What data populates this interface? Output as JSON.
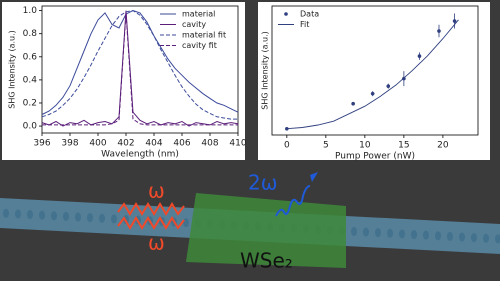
{
  "chart_data": [
    {
      "type": "line",
      "xlabel": "Wavelength (nm)",
      "ylabel": "SHG Intensity (a.u.)",
      "x": [
        396,
        396.5,
        397,
        397.5,
        398,
        398.5,
        399,
        399.5,
        400,
        400.5,
        401,
        401.5,
        402,
        402.5,
        403,
        403.5,
        404,
        404.5,
        405,
        405.5,
        406,
        406.5,
        407,
        407.5,
        408,
        408.5,
        409,
        409.5,
        410
      ],
      "series": [
        {
          "name": "material",
          "color": "#3b4a9a",
          "dash": false,
          "values": [
            0.1,
            0.13,
            0.18,
            0.25,
            0.35,
            0.5,
            0.65,
            0.8,
            0.92,
            0.98,
            0.88,
            0.85,
            0.97,
            1.0,
            0.98,
            0.9,
            0.78,
            0.68,
            0.58,
            0.5,
            0.44,
            0.38,
            0.33,
            0.28,
            0.24,
            0.2,
            0.18,
            0.15,
            0.12
          ]
        },
        {
          "name": "cavity",
          "color": "#5b1f7a",
          "dash": false,
          "values": [
            0.03,
            0.01,
            0.04,
            0.0,
            0.03,
            0.02,
            0.05,
            0.01,
            0.03,
            0.04,
            0.02,
            0.08,
            1.0,
            0.12,
            0.05,
            0.02,
            0.04,
            0.01,
            0.03,
            0.02,
            0.04,
            0.0,
            0.03,
            0.02,
            0.01,
            0.04,
            0.02,
            0.03,
            0.02
          ]
        },
        {
          "name": "material fit",
          "color": "#3b4a9a",
          "dash": true,
          "values": [
            0.08,
            0.1,
            0.13,
            0.18,
            0.24,
            0.32,
            0.42,
            0.53,
            0.65,
            0.76,
            0.87,
            0.95,
            0.99,
            1.0,
            0.96,
            0.88,
            0.78,
            0.66,
            0.55,
            0.44,
            0.34,
            0.26,
            0.19,
            0.14,
            0.11,
            0.08,
            0.07,
            0.06,
            0.06
          ]
        },
        {
          "name": "cavity fit",
          "color": "#5b1f7a",
          "dash": true,
          "values": [
            0.01,
            0.01,
            0.01,
            0.01,
            0.01,
            0.01,
            0.01,
            0.01,
            0.01,
            0.01,
            0.02,
            0.05,
            0.98,
            0.06,
            0.02,
            0.01,
            0.01,
            0.01,
            0.01,
            0.01,
            0.01,
            0.01,
            0.01,
            0.01,
            0.01,
            0.01,
            0.01,
            0.01,
            0.01
          ]
        }
      ],
      "xlim": [
        396,
        410
      ],
      "xticks": [
        396,
        398,
        400,
        402,
        404,
        406,
        408,
        410
      ],
      "ylim": [
        -0.06,
        1.04
      ],
      "yticks": [
        {
          "value": 0,
          "label": "0.0"
        },
        {
          "value": 0.2,
          "label": "0.2"
        },
        {
          "value": 0.4,
          "label": "0.4"
        },
        {
          "value": 0.6,
          "label": "0.6"
        },
        {
          "value": 0.8,
          "label": "0.8"
        },
        {
          "value": 1.0,
          "label": "1.0"
        }
      ],
      "legend": "upper right"
    },
    {
      "type": "scatter",
      "xlabel": "Pump Power (nW)",
      "ylabel": "SHG Intensity (a.u.)",
      "series": [
        {
          "name": "Data",
          "color": "#2f3f7f",
          "x": [
            0,
            8.5,
            11,
            13,
            15,
            17,
            19.5,
            21.5
          ],
          "values": [
            0.02,
            0.22,
            0.3,
            0.36,
            0.42,
            0.6,
            0.8,
            0.88
          ],
          "errors": [
            0,
            0.01,
            0.02,
            0.02,
            0.06,
            0.03,
            0.05,
            0.06
          ]
        },
        {
          "name": "Fit",
          "color": "#2f3f7f",
          "x": [
            0,
            2,
            4,
            6,
            8,
            10,
            12,
            14,
            16,
            18,
            20,
            22
          ],
          "values": [
            0.02,
            0.03,
            0.05,
            0.08,
            0.14,
            0.2,
            0.28,
            0.37,
            0.48,
            0.6,
            0.74,
            0.89
          ]
        }
      ],
      "xlim": [
        -1.9,
        24.5
      ],
      "xticks": [
        0,
        5,
        10,
        15,
        20
      ],
      "ylim": [
        -0.03,
        1.0
      ],
      "legend": "upper left"
    }
  ],
  "illustration": {
    "omega_top": "ω",
    "second_harmonic": "2ω",
    "omega_bottom": "ω",
    "material": "WSe₂"
  }
}
